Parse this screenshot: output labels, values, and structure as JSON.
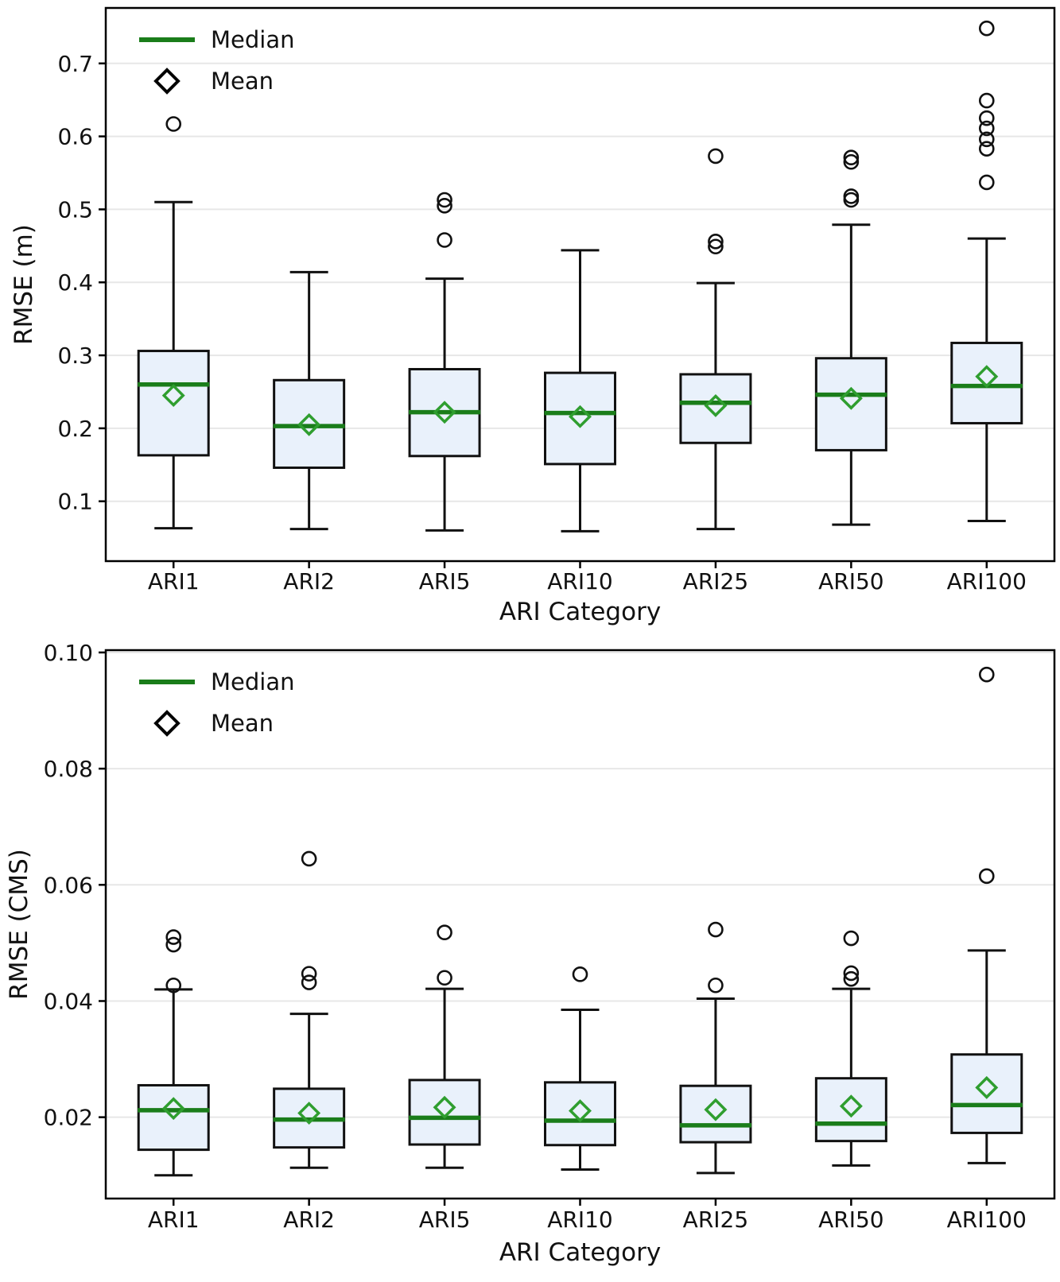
{
  "style": {
    "background": "#ffffff",
    "box_fill": "#e9f1fb",
    "box_edge": "#111111",
    "median_color": "#1a7d1a",
    "mean_edge_color": "#2f9e2f",
    "outlier_edge": "#111111",
    "grid_color": "#e7e7e7",
    "axis_color": "#000000",
    "text_color": "#111111"
  },
  "chart_data": [
    {
      "type": "boxplot",
      "title": "",
      "xlabel": "ARI Category",
      "ylabel": "RMSE (m)",
      "categories": [
        "ARI1",
        "ARI2",
        "ARI5",
        "ARI10",
        "ARI25",
        "ARI50",
        "ARI100"
      ],
      "ylim": [
        0.018,
        0.776
      ],
      "grid": "horizontal",
      "yticks": [
        {
          "value": 0.1,
          "label": "0.1"
        },
        {
          "value": 0.2,
          "label": "0.2"
        },
        {
          "value": 0.3,
          "label": "0.3"
        },
        {
          "value": 0.4,
          "label": "0.4"
        },
        {
          "value": 0.5,
          "label": "0.5"
        },
        {
          "value": 0.6,
          "label": "0.6"
        },
        {
          "value": 0.7,
          "label": "0.7"
        }
      ],
      "legend": {
        "position": "upper-left",
        "items": [
          {
            "marker": "line",
            "color": "#1a7d1a",
            "label": "Median"
          },
          {
            "marker": "diamond",
            "color": "#000000",
            "label": "Mean"
          }
        ]
      },
      "boxes": [
        {
          "category": "ARI1",
          "whisker_low": 0.063,
          "q1": 0.163,
          "median": 0.26,
          "q3": 0.306,
          "whisker_high": 0.51,
          "mean": 0.245,
          "outliers": [
            0.617
          ]
        },
        {
          "category": "ARI2",
          "whisker_low": 0.062,
          "q1": 0.146,
          "median": 0.203,
          "q3": 0.266,
          "whisker_high": 0.414,
          "mean": 0.205,
          "outliers": []
        },
        {
          "category": "ARI5",
          "whisker_low": 0.06,
          "q1": 0.162,
          "median": 0.222,
          "q3": 0.281,
          "whisker_high": 0.405,
          "mean": 0.222,
          "outliers": [
            0.513,
            0.505,
            0.458
          ]
        },
        {
          "category": "ARI10",
          "whisker_low": 0.059,
          "q1": 0.151,
          "median": 0.221,
          "q3": 0.276,
          "whisker_high": 0.444,
          "mean": 0.216,
          "outliers": []
        },
        {
          "category": "ARI25",
          "whisker_low": 0.062,
          "q1": 0.18,
          "median": 0.235,
          "q3": 0.274,
          "whisker_high": 0.399,
          "mean": 0.231,
          "outliers": [
            0.573,
            0.456,
            0.449
          ]
        },
        {
          "category": "ARI50",
          "whisker_low": 0.068,
          "q1": 0.17,
          "median": 0.246,
          "q3": 0.296,
          "whisker_high": 0.479,
          "mean": 0.241,
          "outliers": [
            0.571,
            0.565,
            0.518,
            0.513
          ]
        },
        {
          "category": "ARI100",
          "whisker_low": 0.073,
          "q1": 0.207,
          "median": 0.258,
          "q3": 0.317,
          "whisker_high": 0.46,
          "mean": 0.271,
          "outliers": [
            0.748,
            0.649,
            0.625,
            0.611,
            0.596,
            0.583,
            0.537
          ]
        }
      ]
    },
    {
      "type": "boxplot",
      "title": "",
      "xlabel": "ARI Category",
      "ylabel": "RMSE (CMS)",
      "categories": [
        "ARI1",
        "ARI2",
        "ARI5",
        "ARI10",
        "ARI25",
        "ARI50",
        "ARI100"
      ],
      "ylim": [
        0.006,
        0.1004
      ],
      "grid": "horizontal",
      "yticks": [
        {
          "value": 0.02,
          "label": "0.02"
        },
        {
          "value": 0.04,
          "label": "0.04"
        },
        {
          "value": 0.06,
          "label": "0.06"
        },
        {
          "value": 0.08,
          "label": "0.08"
        },
        {
          "value": 0.1,
          "label": "0.10"
        }
      ],
      "legend": {
        "position": "upper-left",
        "items": [
          {
            "marker": "line",
            "color": "#1a7d1a",
            "label": "Median"
          },
          {
            "marker": "diamond",
            "color": "#000000",
            "label": "Mean"
          }
        ]
      },
      "boxes": [
        {
          "category": "ARI1",
          "whisker_low": 0.01,
          "q1": 0.0144,
          "median": 0.0212,
          "q3": 0.0255,
          "whisker_high": 0.042,
          "mean": 0.0215,
          "outliers": [
            0.051,
            0.0497,
            0.0427
          ]
        },
        {
          "category": "ARI2",
          "whisker_low": 0.0113,
          "q1": 0.0148,
          "median": 0.0196,
          "q3": 0.0249,
          "whisker_high": 0.0378,
          "mean": 0.0207,
          "outliers": [
            0.0645,
            0.0447,
            0.0432
          ]
        },
        {
          "category": "ARI5",
          "whisker_low": 0.0113,
          "q1": 0.0153,
          "median": 0.0199,
          "q3": 0.0264,
          "whisker_high": 0.0421,
          "mean": 0.0217,
          "outliers": [
            0.0518,
            0.044
          ]
        },
        {
          "category": "ARI10",
          "whisker_low": 0.011,
          "q1": 0.0152,
          "median": 0.0194,
          "q3": 0.026,
          "whisker_high": 0.0385,
          "mean": 0.0211,
          "outliers": [
            0.0446
          ]
        },
        {
          "category": "ARI25",
          "whisker_low": 0.0104,
          "q1": 0.0157,
          "median": 0.0186,
          "q3": 0.0254,
          "whisker_high": 0.0404,
          "mean": 0.0213,
          "outliers": [
            0.0523,
            0.0427
          ]
        },
        {
          "category": "ARI50",
          "whisker_low": 0.0117,
          "q1": 0.0159,
          "median": 0.0189,
          "q3": 0.0267,
          "whisker_high": 0.0421,
          "mean": 0.0219,
          "outliers": [
            0.0508,
            0.0448,
            0.0438
          ]
        },
        {
          "category": "ARI100",
          "whisker_low": 0.0121,
          "q1": 0.0173,
          "median": 0.0221,
          "q3": 0.0308,
          "whisker_high": 0.0487,
          "mean": 0.0251,
          "outliers": [
            0.0962,
            0.0615
          ]
        }
      ]
    }
  ]
}
